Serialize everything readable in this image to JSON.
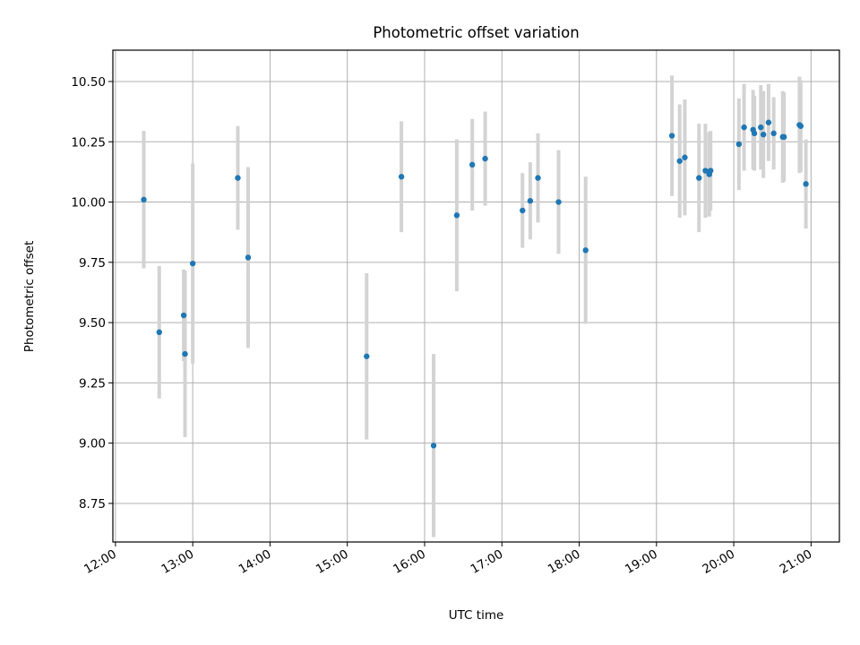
{
  "chart_data": {
    "type": "scatter",
    "title": "Photometric offset variation",
    "xlabel": "UTC time",
    "ylabel": "Photometric offset",
    "xlim": [
      "11:58",
      "21:22"
    ],
    "ylim": [
      8.59,
      10.63
    ],
    "x_ticks": [
      "12:00",
      "13:00",
      "14:00",
      "15:00",
      "16:00",
      "17:00",
      "18:00",
      "19:00",
      "20:00",
      "21:00"
    ],
    "y_ticks": [
      "8.75",
      "9.00",
      "9.25",
      "9.50",
      "9.75",
      "10.00",
      "10.25",
      "10.50"
    ],
    "grid": true,
    "marker_color": "#1f77b4",
    "errorbar_color": "#d3d3d3",
    "points": [
      {
        "time": "12:22",
        "y": 10.01,
        "err": 0.285
      },
      {
        "time": "12:34",
        "y": 9.46,
        "err": 0.275
      },
      {
        "time": "12:53",
        "y": 9.53,
        "err": 0.19
      },
      {
        "time": "12:54",
        "y": 9.37,
        "err": 0.345
      },
      {
        "time": "13:00",
        "y": 9.745,
        "err": 0.415
      },
      {
        "time": "13:35",
        "y": 10.1,
        "err": 0.215
      },
      {
        "time": "13:43",
        "y": 9.77,
        "err": 0.375
      },
      {
        "time": "15:15",
        "y": 9.36,
        "err": 0.345
      },
      {
        "time": "15:42",
        "y": 10.105,
        "err": 0.23
      },
      {
        "time": "16:07",
        "y": 8.99,
        "err": 0.38
      },
      {
        "time": "16:25",
        "y": 9.945,
        "err": 0.315
      },
      {
        "time": "16:37",
        "y": 10.155,
        "err": 0.19
      },
      {
        "time": "16:47",
        "y": 10.18,
        "err": 0.195
      },
      {
        "time": "17:16",
        "y": 9.965,
        "err": 0.155
      },
      {
        "time": "17:22",
        "y": 10.005,
        "err": 0.16
      },
      {
        "time": "17:28",
        "y": 10.1,
        "err": 0.185
      },
      {
        "time": "17:44",
        "y": 10.0,
        "err": 0.215
      },
      {
        "time": "18:05",
        "y": 9.8,
        "err": 0.305
      },
      {
        "time": "19:12",
        "y": 10.275,
        "err": 0.25
      },
      {
        "time": "19:18",
        "y": 10.17,
        "err": 0.235
      },
      {
        "time": "19:22",
        "y": 10.185,
        "err": 0.24
      },
      {
        "time": "19:33",
        "y": 10.1,
        "err": 0.225
      },
      {
        "time": "19:38",
        "y": 10.13,
        "err": 0.195
      },
      {
        "time": "19:41",
        "y": 10.115,
        "err": 0.175
      },
      {
        "time": "19:42",
        "y": 10.13,
        "err": 0.165
      },
      {
        "time": "20:04",
        "y": 10.24,
        "err": 0.19
      },
      {
        "time": "20:08",
        "y": 10.31,
        "err": 0.18
      },
      {
        "time": "20:15",
        "y": 10.3,
        "err": 0.165
      },
      {
        "time": "20:16",
        "y": 10.285,
        "err": 0.155
      },
      {
        "time": "20:21",
        "y": 10.31,
        "err": 0.175
      },
      {
        "time": "20:23",
        "y": 10.28,
        "err": 0.18
      },
      {
        "time": "20:27",
        "y": 10.33,
        "err": 0.16
      },
      {
        "time": "20:31",
        "y": 10.285,
        "err": 0.15
      },
      {
        "time": "20:38",
        "y": 10.27,
        "err": 0.19
      },
      {
        "time": "20:39",
        "y": 10.27,
        "err": 0.185
      },
      {
        "time": "20:51",
        "y": 10.32,
        "err": 0.2
      },
      {
        "time": "20:52",
        "y": 10.315,
        "err": 0.19
      },
      {
        "time": "20:56",
        "y": 10.075,
        "err": 0.185
      }
    ]
  }
}
